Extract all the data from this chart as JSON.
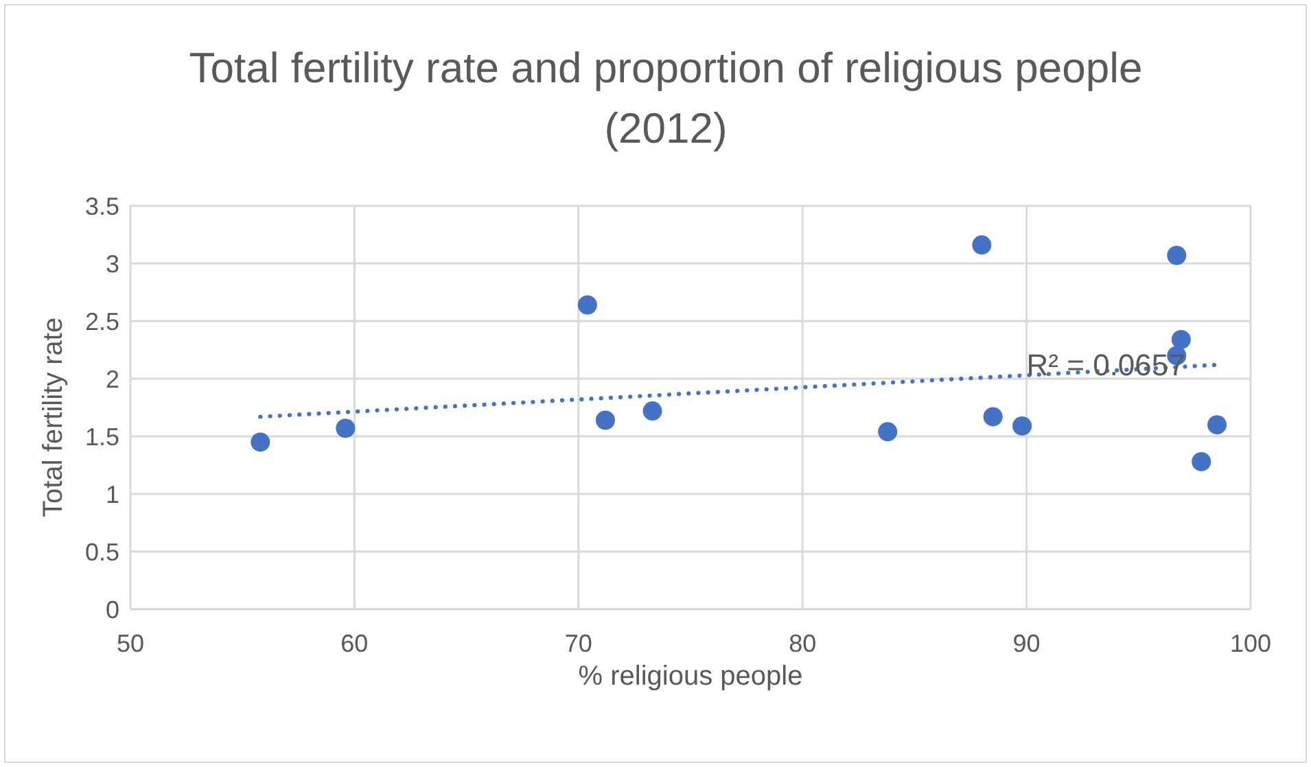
{
  "chart_data": {
    "type": "scatter",
    "title": "Total fertility rate and proportion of religious people (2012)",
    "xlabel": "% religious people",
    "ylabel": "Total fertility rate",
    "xlim": [
      50,
      100
    ],
    "xticks": [
      50,
      60,
      70,
      80,
      90,
      100
    ],
    "ylim": [
      0,
      3.5
    ],
    "yticks": [
      0,
      0.5,
      1,
      1.5,
      2,
      2.5,
      3,
      3.5
    ],
    "grid": true,
    "legend": false,
    "marker": "circle",
    "series": [
      {
        "type": "scatter",
        "color": "#4472c4",
        "x": [
          55.8,
          59.6,
          70.4,
          71.2,
          73.3,
          83.8,
          88.0,
          88.5,
          89.8,
          96.7,
          96.9,
          96.7,
          97.8,
          98.5
        ],
        "values": [
          1.45,
          1.57,
          2.64,
          1.64,
          1.72,
          1.54,
          3.16,
          1.67,
          1.59,
          3.07,
          2.34,
          2.2,
          1.28,
          1.6
        ]
      },
      {
        "type": "line",
        "color": "#4472c4",
        "line_style": "dotted",
        "marker": "none",
        "x": [
          55.8,
          98.5
        ],
        "values": [
          1.67,
          2.12
        ]
      }
    ],
    "annotations": [
      {
        "text": "R² = 0.0657",
        "x": 90,
        "y": 2.03
      }
    ]
  }
}
